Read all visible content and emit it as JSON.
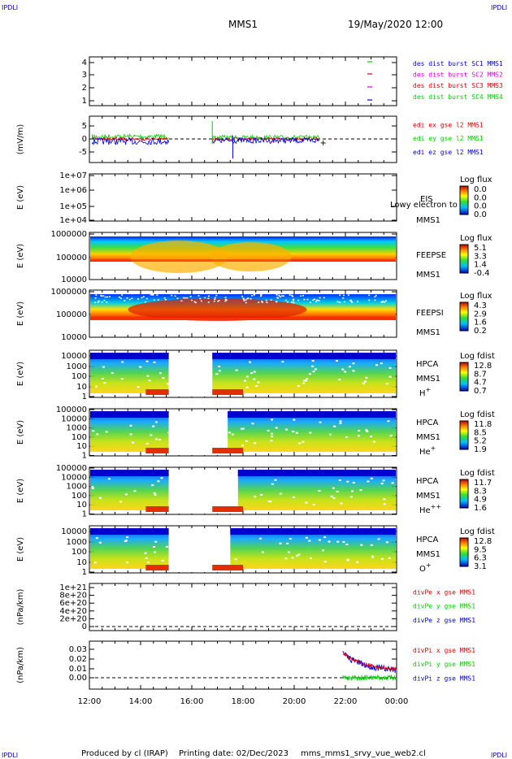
{
  "header": {
    "corner_left_top": "IPDLI",
    "corner_right_top": "IPDLI",
    "corner_left_bottom": "IPDLI",
    "corner_right_bottom": "IPDLI",
    "spacecraft": "MMS1",
    "datetime": "19/May/2020 12:00"
  },
  "footer": {
    "produced_by": "Produced by cl (IRAP)",
    "printing_date": "Printing date: 02/Dec/2023",
    "script": "mms_mms1_srvy_vue_web2.cl"
  },
  "colors": {
    "red": "#e00000",
    "magenta": "#e000e0",
    "green": "#00d000",
    "blue": "#0000e0"
  },
  "chart_data": {
    "type": "multi-panel time series",
    "x_ticks": [
      "12:00",
      "14:00",
      "16:00",
      "18:00",
      "20:00",
      "22:00",
      "00:00"
    ],
    "panels": [
      {
        "id": "burst",
        "yticks": [
          "4",
          "3",
          "2",
          "1"
        ],
        "legend": [
          {
            "label": "des dist burst SC1 MMS1",
            "color": "#0000e0"
          },
          {
            "label": "des dist burst SC2 MMS2",
            "color": "#e000e0"
          },
          {
            "label": "des dist burst SC3 MMS3",
            "color": "#e00000"
          },
          {
            "label": "des dist burst SC4 MMS4",
            "color": "#00d000"
          }
        ]
      },
      {
        "id": "edi",
        "ylabel": "(mV/m)",
        "yticks": [
          "5",
          "0",
          "-5"
        ],
        "legend": [
          {
            "label": "edi ex gse l2 MMS1",
            "color": "#e00000"
          },
          {
            "label": "edi ey gse l2 MMS1",
            "color": "#00d000"
          },
          {
            "label": "edi ez gse l2 MMS1",
            "color": "#0000e0"
          }
        ]
      },
      {
        "id": "eis",
        "ylabel": "E (eV)",
        "yticks": [
          "1e+07",
          "1e+06",
          "1e+05",
          "1e+04"
        ],
        "right": [
          "EIS",
          "MMS1"
        ],
        "overlay": "Lowy electron to",
        "colorbar": {
          "title": "Log flux",
          "ticks": [
            "0.0",
            "0.0",
            "0.0",
            "0.0"
          ]
        }
      },
      {
        "id": "feepse",
        "ylabel": "E (eV)",
        "yticks": [
          "1000000",
          "100000",
          "10000"
        ],
        "right": [
          "FEEPSE",
          "MMS1"
        ],
        "colorbar": {
          "title": "Log flux",
          "ticks": [
            "5.1",
            "3.3",
            "1.4",
            "-0.4"
          ]
        }
      },
      {
        "id": "feepsi",
        "ylabel": "E (eV)",
        "yticks": [
          "1000000",
          "100000",
          "10000"
        ],
        "right": [
          "FEEPSI",
          "MMS1"
        ],
        "colorbar": {
          "title": "Log flux",
          "ticks": [
            "4.3",
            "2.9",
            "1.6",
            "0.2"
          ]
        }
      },
      {
        "id": "hpca_h",
        "ylabel": "E (eV)",
        "yticks": [
          "10000",
          "1000",
          "100",
          "10",
          "1"
        ],
        "right": [
          "HPCA",
          "MMS1",
          "H+"
        ],
        "colorbar": {
          "title": "Log fdist",
          "ticks": [
            "12.8",
            "8.7",
            "4.7",
            "0.7"
          ]
        }
      },
      {
        "id": "hpca_he",
        "ylabel": "E (eV)",
        "yticks": [
          "100000",
          "10000",
          "1000",
          "100",
          "10",
          "1"
        ],
        "right": [
          "HPCA",
          "MMS1",
          "He+"
        ],
        "colorbar": {
          "title": "Log fdist",
          "ticks": [
            "11.8",
            "8.5",
            "5.2",
            "1.9"
          ]
        }
      },
      {
        "id": "hpca_hepp",
        "ylabel": "E (eV)",
        "yticks": [
          "100000",
          "10000",
          "1000",
          "100",
          "10",
          "1"
        ],
        "right": [
          "HPCA",
          "MMS1",
          "He++"
        ],
        "colorbar": {
          "title": "Log fdist",
          "ticks": [
            "11.7",
            "8.3",
            "4.9",
            "1.6"
          ]
        }
      },
      {
        "id": "hpca_o",
        "ylabel": "E (eV)",
        "yticks": [
          "10000",
          "1000",
          "100",
          "10",
          "1"
        ],
        "right": [
          "HPCA",
          "MMS1",
          "O+"
        ],
        "colorbar": {
          "title": "Log fdist",
          "ticks": [
            "12.8",
            "9.5",
            "6.3",
            "3.1"
          ]
        }
      },
      {
        "id": "divpe",
        "ylabel": "(nPa/km)",
        "yticks": [
          "1e+21",
          "8e+20",
          "6e+20",
          "4e+20",
          "2e+20",
          "0"
        ],
        "legend": [
          {
            "label": "divPe x gse MMS1",
            "color": "#e00000"
          },
          {
            "label": "divPe y gse MMS1",
            "color": "#00d000"
          },
          {
            "label": "divPe z gse MMS1",
            "color": "#0000e0"
          }
        ]
      },
      {
        "id": "divpi",
        "ylabel": "(nPa/km)",
        "yticks": [
          "0.03",
          "0.02",
          "0.01",
          "0.00"
        ],
        "legend": [
          {
            "label": "divPi x gse MMS1",
            "color": "#e00000"
          },
          {
            "label": "divPi y gse MMS1",
            "color": "#00d000"
          },
          {
            "label": "divPi z gse MMS1",
            "color": "#0000e0"
          }
        ]
      }
    ]
  }
}
